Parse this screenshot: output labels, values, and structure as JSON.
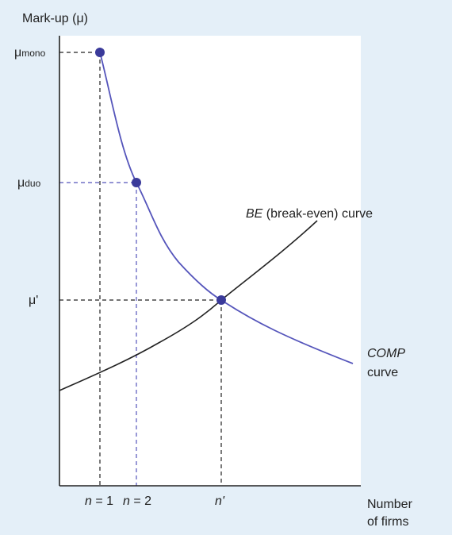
{
  "y_axis": {
    "label": "Mark-up (μ)"
  },
  "y_labels": {
    "mono": {
      "symbol": "μ",
      "subscript": "mono"
    },
    "duo": {
      "symbol": "μ",
      "subscript": "duo"
    },
    "prime": "μ'"
  },
  "curves": {
    "be": {
      "name": "BE",
      "rest": "(break-even) curve"
    },
    "comp": {
      "name": "COMP",
      "rest": "curve"
    }
  },
  "x_labels": {
    "n1": {
      "var": "n",
      "rest": " = 1"
    },
    "n2": {
      "var": "n",
      "rest": " = 2"
    },
    "prime": {
      "var": "n'"
    }
  },
  "x_axis": {
    "label_line1": "Number",
    "label_line2": "of firms"
  }
}
